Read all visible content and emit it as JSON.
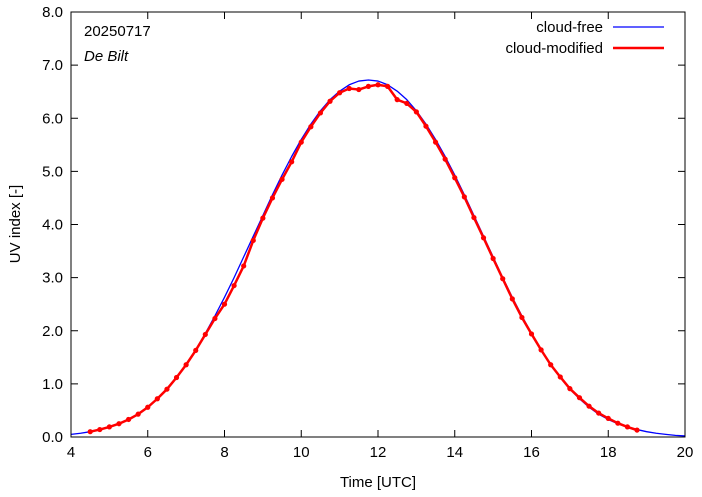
{
  "chart_data": {
    "type": "line",
    "xlabel": "Time  [UTC]",
    "ylabel": "UV index  [-]",
    "xlim": [
      4,
      20
    ],
    "ylim": [
      0,
      8
    ],
    "xticks": [
      4,
      6,
      8,
      10,
      12,
      14,
      16,
      18,
      20
    ],
    "yticks": [
      0,
      1,
      2,
      3,
      4,
      5,
      6,
      7,
      8
    ],
    "xtick_labels": [
      "4",
      "6",
      "8",
      "10",
      "12",
      "14",
      "16",
      "18",
      "20"
    ],
    "ytick_labels": [
      "0.0",
      "1.0",
      "2.0",
      "3.0",
      "4.0",
      "5.0",
      "6.0",
      "7.0",
      "8.0"
    ],
    "grid": false,
    "legend_position": "top-right",
    "annotations": [
      {
        "text": "20250717",
        "style": "normal"
      },
      {
        "text": "De Bilt",
        "style": "italic"
      }
    ],
    "series": [
      {
        "name": "cloud-free",
        "color": "#0000ff",
        "markers": false,
        "x": [
          4.0,
          4.25,
          4.5,
          4.75,
          5.0,
          5.25,
          5.5,
          5.75,
          6.0,
          6.25,
          6.5,
          6.75,
          7.0,
          7.25,
          7.5,
          7.75,
          8.0,
          8.25,
          8.5,
          8.75,
          9.0,
          9.25,
          9.5,
          9.75,
          10.0,
          10.25,
          10.5,
          10.75,
          11.0,
          11.25,
          11.5,
          11.75,
          12.0,
          12.25,
          12.5,
          12.75,
          13.0,
          13.25,
          13.5,
          13.75,
          14.0,
          14.25,
          14.5,
          14.75,
          15.0,
          15.25,
          15.5,
          15.75,
          16.0,
          16.25,
          16.5,
          16.75,
          17.0,
          17.25,
          17.5,
          17.75,
          18.0,
          18.25,
          18.5,
          18.75,
          19.0,
          19.25,
          19.5,
          19.75,
          20.0
        ],
        "y": [
          0.05,
          0.07,
          0.1,
          0.14,
          0.19,
          0.25,
          0.33,
          0.43,
          0.56,
          0.72,
          0.9,
          1.12,
          1.36,
          1.64,
          1.95,
          2.28,
          2.63,
          3.0,
          3.39,
          3.78,
          4.17,
          4.56,
          4.93,
          5.28,
          5.6,
          5.89,
          6.14,
          6.35,
          6.51,
          6.63,
          6.7,
          6.72,
          6.7,
          6.63,
          6.51,
          6.35,
          6.14,
          5.89,
          5.6,
          5.28,
          4.93,
          4.56,
          4.17,
          3.78,
          3.39,
          3.0,
          2.63,
          2.28,
          1.95,
          1.64,
          1.36,
          1.12,
          0.9,
          0.72,
          0.56,
          0.43,
          0.33,
          0.25,
          0.19,
          0.14,
          0.1,
          0.07,
          0.05,
          0.03,
          0.02
        ]
      },
      {
        "name": "cloud-modified",
        "color": "#ff0000",
        "markers": true,
        "x": [
          4.5,
          4.75,
          5.0,
          5.25,
          5.5,
          5.75,
          6.0,
          6.25,
          6.5,
          6.75,
          7.0,
          7.25,
          7.5,
          7.75,
          8.0,
          8.25,
          8.5,
          8.75,
          9.0,
          9.25,
          9.5,
          9.75,
          10.0,
          10.25,
          10.5,
          10.75,
          11.0,
          11.25,
          11.5,
          11.75,
          12.0,
          12.25,
          12.5,
          12.75,
          13.0,
          13.25,
          13.5,
          13.75,
          14.0,
          14.25,
          14.5,
          14.75,
          15.0,
          15.25,
          15.5,
          15.75,
          16.0,
          16.25,
          16.5,
          16.75,
          17.0,
          17.25,
          17.5,
          17.75,
          18.0,
          18.25,
          18.5,
          18.75
        ],
        "y": [
          0.1,
          0.14,
          0.19,
          0.25,
          0.33,
          0.43,
          0.56,
          0.72,
          0.9,
          1.12,
          1.36,
          1.63,
          1.93,
          2.23,
          2.5,
          2.85,
          3.22,
          3.7,
          4.12,
          4.5,
          4.85,
          5.18,
          5.55,
          5.84,
          6.1,
          6.32,
          6.48,
          6.56,
          6.54,
          6.6,
          6.63,
          6.6,
          6.35,
          6.28,
          6.12,
          5.85,
          5.55,
          5.23,
          4.88,
          4.52,
          4.13,
          3.75,
          3.36,
          2.98,
          2.6,
          2.25,
          1.94,
          1.64,
          1.36,
          1.13,
          0.91,
          0.74,
          0.58,
          0.45,
          0.35,
          0.26,
          0.19,
          0.13
        ]
      }
    ]
  }
}
